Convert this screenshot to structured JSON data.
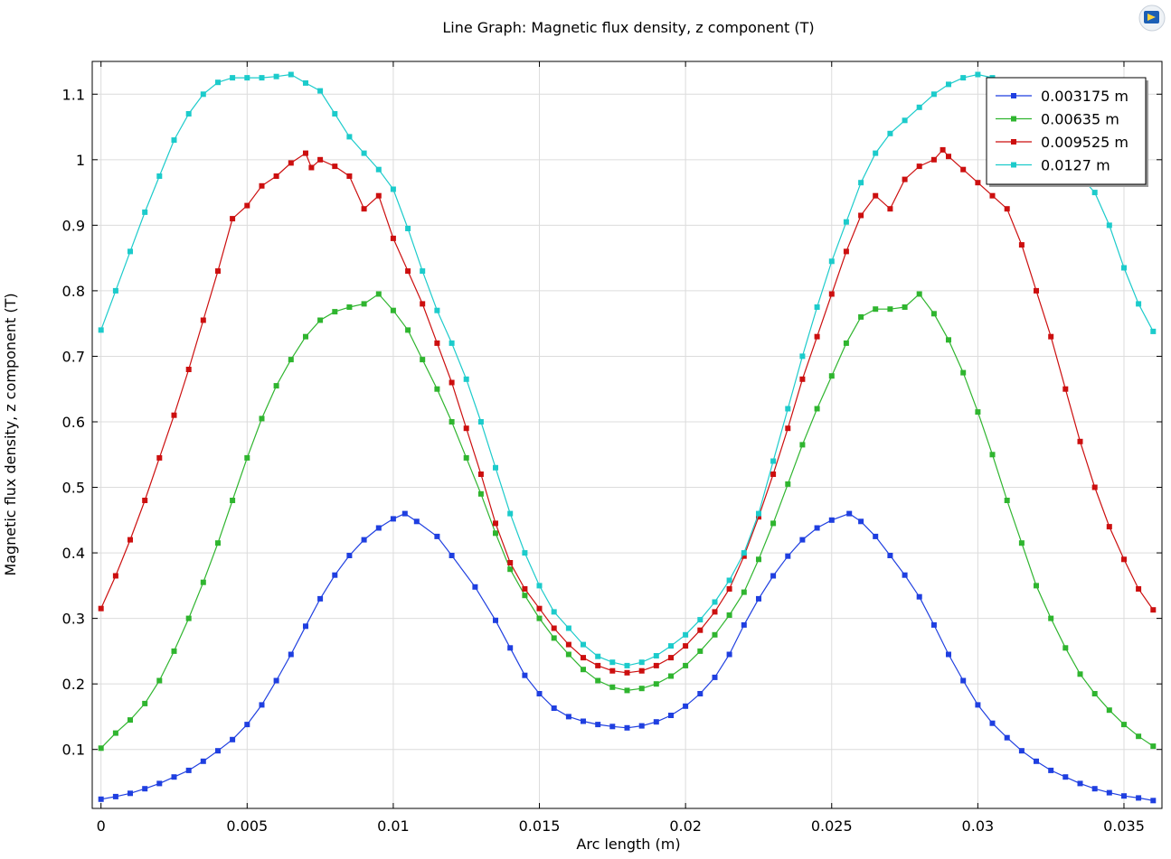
{
  "window": {
    "logo_icon": "comsol-logo-icon"
  },
  "chart_data": {
    "type": "line",
    "title": "Line Graph: Magnetic flux density, z component (T)",
    "xlabel": "Arc length (m)",
    "ylabel": "Magnetic flux density, z component (T)",
    "xlim": [
      -0.0003,
      0.0363
    ],
    "ylim": [
      0.01,
      1.15
    ],
    "xticks": [
      0,
      0.005,
      0.01,
      0.015,
      0.02,
      0.025,
      0.03,
      0.035
    ],
    "xtick_labels": [
      "0",
      "0.005",
      "0.01",
      "0.015",
      "0.02",
      "0.025",
      "0.03",
      "0.035"
    ],
    "yticks": [
      0.1,
      0.2,
      0.3,
      0.4,
      0.5,
      0.6,
      0.7,
      0.8,
      0.9,
      1.0,
      1.1
    ],
    "ytick_labels": [
      "0.1",
      "0.2",
      "0.3",
      "0.4",
      "0.5",
      "0.6",
      "0.7",
      "0.8",
      "0.9",
      "1",
      "1.1"
    ],
    "grid": true,
    "legend_position": "top-right",
    "series": [
      {
        "name": "0.003175 m",
        "color": "#1f3fe0",
        "points": [
          [
            0,
            0.024
          ],
          [
            0.0005,
            0.028
          ],
          [
            0.001,
            0.033
          ],
          [
            0.0015,
            0.04
          ],
          [
            0.002,
            0.048
          ],
          [
            0.0025,
            0.058
          ],
          [
            0.003,
            0.068
          ],
          [
            0.0035,
            0.082
          ],
          [
            0.004,
            0.098
          ],
          [
            0.0045,
            0.115
          ],
          [
            0.005,
            0.138
          ],
          [
            0.0055,
            0.168
          ],
          [
            0.006,
            0.205
          ],
          [
            0.0065,
            0.245
          ],
          [
            0.007,
            0.288
          ],
          [
            0.0075,
            0.33
          ],
          [
            0.008,
            0.366
          ],
          [
            0.0085,
            0.396
          ],
          [
            0.009,
            0.42
          ],
          [
            0.0095,
            0.438
          ],
          [
            0.01,
            0.452
          ],
          [
            0.0104,
            0.46
          ],
          [
            0.0108,
            0.448
          ],
          [
            0.0115,
            0.425
          ],
          [
            0.012,
            0.396
          ],
          [
            0.0128,
            0.348
          ],
          [
            0.0135,
            0.297
          ],
          [
            0.014,
            0.255
          ],
          [
            0.0145,
            0.213
          ],
          [
            0.015,
            0.185
          ],
          [
            0.0155,
            0.163
          ],
          [
            0.016,
            0.15
          ],
          [
            0.0165,
            0.143
          ],
          [
            0.017,
            0.138
          ],
          [
            0.0175,
            0.135
          ],
          [
            0.018,
            0.133
          ],
          [
            0.0185,
            0.136
          ],
          [
            0.019,
            0.142
          ],
          [
            0.0195,
            0.152
          ],
          [
            0.02,
            0.166
          ],
          [
            0.0205,
            0.185
          ],
          [
            0.021,
            0.21
          ],
          [
            0.0215,
            0.245
          ],
          [
            0.022,
            0.29
          ],
          [
            0.0225,
            0.33
          ],
          [
            0.023,
            0.365
          ],
          [
            0.0235,
            0.395
          ],
          [
            0.024,
            0.42
          ],
          [
            0.0245,
            0.438
          ],
          [
            0.025,
            0.45
          ],
          [
            0.0256,
            0.46
          ],
          [
            0.026,
            0.448
          ],
          [
            0.0265,
            0.425
          ],
          [
            0.027,
            0.396
          ],
          [
            0.0275,
            0.366
          ],
          [
            0.028,
            0.333
          ],
          [
            0.0285,
            0.29
          ],
          [
            0.029,
            0.245
          ],
          [
            0.0295,
            0.205
          ],
          [
            0.03,
            0.168
          ],
          [
            0.0305,
            0.14
          ],
          [
            0.031,
            0.118
          ],
          [
            0.0315,
            0.098
          ],
          [
            0.032,
            0.082
          ],
          [
            0.0325,
            0.068
          ],
          [
            0.033,
            0.058
          ],
          [
            0.0335,
            0.048
          ],
          [
            0.034,
            0.04
          ],
          [
            0.0345,
            0.034
          ],
          [
            0.035,
            0.029
          ],
          [
            0.0355,
            0.026
          ],
          [
            0.036,
            0.022
          ]
        ]
      },
      {
        "name": "0.00635 m",
        "color": "#2fb52f",
        "points": [
          [
            0,
            0.102
          ],
          [
            0.0005,
            0.125
          ],
          [
            0.001,
            0.145
          ],
          [
            0.0015,
            0.17
          ],
          [
            0.002,
            0.205
          ],
          [
            0.0025,
            0.25
          ],
          [
            0.003,
            0.3
          ],
          [
            0.0035,
            0.355
          ],
          [
            0.004,
            0.415
          ],
          [
            0.0045,
            0.48
          ],
          [
            0.005,
            0.545
          ],
          [
            0.0055,
            0.605
          ],
          [
            0.006,
            0.655
          ],
          [
            0.0065,
            0.695
          ],
          [
            0.007,
            0.73
          ],
          [
            0.0075,
            0.755
          ],
          [
            0.008,
            0.768
          ],
          [
            0.0085,
            0.775
          ],
          [
            0.009,
            0.78
          ],
          [
            0.0095,
            0.795
          ],
          [
            0.01,
            0.77
          ],
          [
            0.0105,
            0.74
          ],
          [
            0.011,
            0.695
          ],
          [
            0.0115,
            0.65
          ],
          [
            0.012,
            0.6
          ],
          [
            0.0125,
            0.545
          ],
          [
            0.013,
            0.49
          ],
          [
            0.0135,
            0.43
          ],
          [
            0.014,
            0.375
          ],
          [
            0.0145,
            0.335
          ],
          [
            0.015,
            0.3
          ],
          [
            0.0155,
            0.27
          ],
          [
            0.016,
            0.245
          ],
          [
            0.0165,
            0.222
          ],
          [
            0.017,
            0.205
          ],
          [
            0.0175,
            0.195
          ],
          [
            0.018,
            0.19
          ],
          [
            0.0185,
            0.193
          ],
          [
            0.019,
            0.2
          ],
          [
            0.0195,
            0.212
          ],
          [
            0.02,
            0.228
          ],
          [
            0.0205,
            0.25
          ],
          [
            0.021,
            0.275
          ],
          [
            0.0215,
            0.305
          ],
          [
            0.022,
            0.34
          ],
          [
            0.0225,
            0.39
          ],
          [
            0.023,
            0.445
          ],
          [
            0.0235,
            0.505
          ],
          [
            0.024,
            0.565
          ],
          [
            0.0245,
            0.62
          ],
          [
            0.025,
            0.67
          ],
          [
            0.0255,
            0.72
          ],
          [
            0.026,
            0.76
          ],
          [
            0.0265,
            0.772
          ],
          [
            0.027,
            0.772
          ],
          [
            0.0275,
            0.775
          ],
          [
            0.028,
            0.795
          ],
          [
            0.0285,
            0.765
          ],
          [
            0.029,
            0.725
          ],
          [
            0.0295,
            0.675
          ],
          [
            0.03,
            0.615
          ],
          [
            0.0305,
            0.55
          ],
          [
            0.031,
            0.48
          ],
          [
            0.0315,
            0.415
          ],
          [
            0.032,
            0.35
          ],
          [
            0.0325,
            0.3
          ],
          [
            0.033,
            0.255
          ],
          [
            0.0335,
            0.215
          ],
          [
            0.034,
            0.185
          ],
          [
            0.0345,
            0.16
          ],
          [
            0.035,
            0.138
          ],
          [
            0.0355,
            0.12
          ],
          [
            0.036,
            0.105
          ]
        ]
      },
      {
        "name": "0.009525 m",
        "color": "#cc0f0f",
        "points": [
          [
            0,
            0.315
          ],
          [
            0.0005,
            0.365
          ],
          [
            0.001,
            0.42
          ],
          [
            0.0015,
            0.48
          ],
          [
            0.002,
            0.545
          ],
          [
            0.0025,
            0.61
          ],
          [
            0.003,
            0.68
          ],
          [
            0.0035,
            0.755
          ],
          [
            0.004,
            0.83
          ],
          [
            0.0045,
            0.91
          ],
          [
            0.005,
            0.93
          ],
          [
            0.0055,
            0.96
          ],
          [
            0.006,
            0.975
          ],
          [
            0.0065,
            0.995
          ],
          [
            0.007,
            1.01
          ],
          [
            0.0072,
            0.988
          ],
          [
            0.0075,
            1.0
          ],
          [
            0.008,
            0.99
          ],
          [
            0.0085,
            0.975
          ],
          [
            0.009,
            0.925
          ],
          [
            0.0095,
            0.945
          ],
          [
            0.01,
            0.88
          ],
          [
            0.0105,
            0.83
          ],
          [
            0.011,
            0.78
          ],
          [
            0.0115,
            0.72
          ],
          [
            0.012,
            0.66
          ],
          [
            0.0125,
            0.59
          ],
          [
            0.013,
            0.52
          ],
          [
            0.0135,
            0.445
          ],
          [
            0.014,
            0.385
          ],
          [
            0.0145,
            0.345
          ],
          [
            0.015,
            0.315
          ],
          [
            0.0155,
            0.285
          ],
          [
            0.016,
            0.26
          ],
          [
            0.0165,
            0.24
          ],
          [
            0.017,
            0.228
          ],
          [
            0.0175,
            0.22
          ],
          [
            0.018,
            0.217
          ],
          [
            0.0185,
            0.22
          ],
          [
            0.019,
            0.228
          ],
          [
            0.0195,
            0.24
          ],
          [
            0.02,
            0.258
          ],
          [
            0.0205,
            0.282
          ],
          [
            0.021,
            0.31
          ],
          [
            0.0215,
            0.345
          ],
          [
            0.022,
            0.395
          ],
          [
            0.0225,
            0.455
          ],
          [
            0.023,
            0.52
          ],
          [
            0.0235,
            0.59
          ],
          [
            0.024,
            0.665
          ],
          [
            0.0245,
            0.73
          ],
          [
            0.025,
            0.795
          ],
          [
            0.0255,
            0.86
          ],
          [
            0.026,
            0.915
          ],
          [
            0.0265,
            0.945
          ],
          [
            0.027,
            0.925
          ],
          [
            0.0275,
            0.97
          ],
          [
            0.028,
            0.99
          ],
          [
            0.0285,
            1.0
          ],
          [
            0.0288,
            1.015
          ],
          [
            0.029,
            1.005
          ],
          [
            0.0295,
            0.985
          ],
          [
            0.03,
            0.965
          ],
          [
            0.0305,
            0.945
          ],
          [
            0.031,
            0.925
          ],
          [
            0.0315,
            0.87
          ],
          [
            0.032,
            0.8
          ],
          [
            0.0325,
            0.73
          ],
          [
            0.033,
            0.65
          ],
          [
            0.0335,
            0.57
          ],
          [
            0.034,
            0.5
          ],
          [
            0.0345,
            0.44
          ],
          [
            0.035,
            0.39
          ],
          [
            0.0355,
            0.345
          ],
          [
            0.036,
            0.313
          ]
        ]
      },
      {
        "name": "0.0127 m",
        "color": "#1ccbcb",
        "points": [
          [
            0,
            0.74
          ],
          [
            0.0005,
            0.8
          ],
          [
            0.001,
            0.86
          ],
          [
            0.0015,
            0.92
          ],
          [
            0.002,
            0.975
          ],
          [
            0.0025,
            1.03
          ],
          [
            0.003,
            1.07
          ],
          [
            0.0035,
            1.1
          ],
          [
            0.004,
            1.118
          ],
          [
            0.0045,
            1.125
          ],
          [
            0.005,
            1.125
          ],
          [
            0.0055,
            1.125
          ],
          [
            0.006,
            1.127
          ],
          [
            0.0065,
            1.13
          ],
          [
            0.007,
            1.117
          ],
          [
            0.0075,
            1.105
          ],
          [
            0.008,
            1.07
          ],
          [
            0.0085,
            1.035
          ],
          [
            0.009,
            1.01
          ],
          [
            0.0095,
            0.985
          ],
          [
            0.01,
            0.955
          ],
          [
            0.0105,
            0.895
          ],
          [
            0.011,
            0.83
          ],
          [
            0.0115,
            0.77
          ],
          [
            0.012,
            0.72
          ],
          [
            0.0125,
            0.665
          ],
          [
            0.013,
            0.6
          ],
          [
            0.0135,
            0.53
          ],
          [
            0.014,
            0.46
          ],
          [
            0.0145,
            0.4
          ],
          [
            0.015,
            0.35
          ],
          [
            0.0155,
            0.31
          ],
          [
            0.016,
            0.285
          ],
          [
            0.0165,
            0.26
          ],
          [
            0.017,
            0.242
          ],
          [
            0.0175,
            0.233
          ],
          [
            0.018,
            0.228
          ],
          [
            0.0185,
            0.233
          ],
          [
            0.019,
            0.243
          ],
          [
            0.0195,
            0.258
          ],
          [
            0.02,
            0.275
          ],
          [
            0.0205,
            0.298
          ],
          [
            0.021,
            0.325
          ],
          [
            0.0215,
            0.358
          ],
          [
            0.022,
            0.4
          ],
          [
            0.0225,
            0.46
          ],
          [
            0.023,
            0.54
          ],
          [
            0.0235,
            0.62
          ],
          [
            0.024,
            0.7
          ],
          [
            0.0245,
            0.775
          ],
          [
            0.025,
            0.845
          ],
          [
            0.0255,
            0.905
          ],
          [
            0.026,
            0.965
          ],
          [
            0.0265,
            1.01
          ],
          [
            0.027,
            1.04
          ],
          [
            0.0275,
            1.06
          ],
          [
            0.028,
            1.08
          ],
          [
            0.0285,
            1.1
          ],
          [
            0.029,
            1.115
          ],
          [
            0.0295,
            1.125
          ],
          [
            0.03,
            1.13
          ],
          [
            0.0305,
            1.125
          ],
          [
            0.031,
            1.11
          ],
          [
            0.0315,
            1.09
          ],
          [
            0.032,
            1.06
          ],
          [
            0.0325,
            1.03
          ],
          [
            0.033,
            1.0
          ],
          [
            0.0335,
            0.975
          ],
          [
            0.034,
            0.95
          ],
          [
            0.0345,
            0.9
          ],
          [
            0.035,
            0.835
          ],
          [
            0.0355,
            0.78
          ],
          [
            0.036,
            0.738
          ]
        ]
      }
    ]
  }
}
